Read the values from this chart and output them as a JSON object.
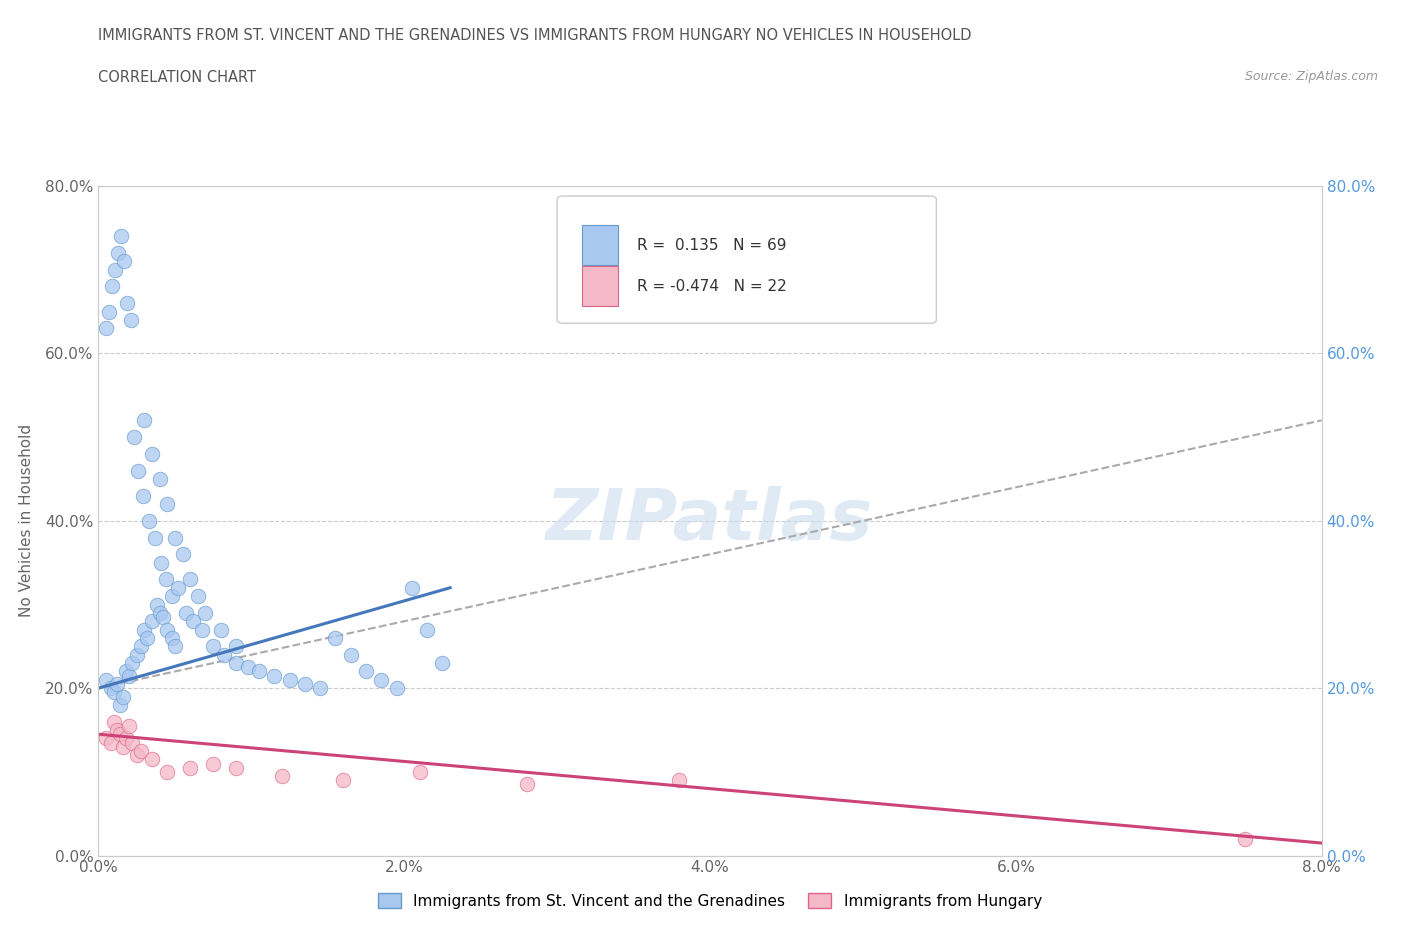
{
  "title_line1": "IMMIGRANTS FROM ST. VINCENT AND THE GRENADINES VS IMMIGRANTS FROM HUNGARY NO VEHICLES IN HOUSEHOLD",
  "title_line2": "CORRELATION CHART",
  "source_text": "Source: ZipAtlas.com",
  "ylabel": "No Vehicles in Household",
  "xlim": [
    0.0,
    8.0
  ],
  "ylim": [
    0.0,
    80.0
  ],
  "xticks": [
    0.0,
    2.0,
    4.0,
    6.0,
    8.0
  ],
  "yticks": [
    0.0,
    20.0,
    40.0,
    60.0,
    80.0
  ],
  "blue_color": "#a8c8f0",
  "pink_color": "#f5b8c8",
  "blue_edge_color": "#6699cc",
  "pink_edge_color": "#dd6688",
  "blue_line_color": "#4477bb",
  "pink_line_color": "#cc4477",
  "dashed_line_color": "#aaaaaa",
  "watermark_color": "#ccddef",
  "blue_scatter_x": [
    0.05,
    0.08,
    0.1,
    0.12,
    0.14,
    0.16,
    0.18,
    0.2,
    0.22,
    0.25,
    0.28,
    0.3,
    0.32,
    0.35,
    0.38,
    0.4,
    0.42,
    0.45,
    0.48,
    0.5,
    0.05,
    0.07,
    0.09,
    0.11,
    0.13,
    0.15,
    0.17,
    0.19,
    0.21,
    0.23,
    0.26,
    0.29,
    0.33,
    0.37,
    0.41,
    0.44,
    0.48,
    0.52,
    0.57,
    0.62,
    0.68,
    0.75,
    0.82,
    0.9,
    0.98,
    1.05,
    1.15,
    1.25,
    1.35,
    1.45,
    1.55,
    1.65,
    1.75,
    1.85,
    1.95,
    2.05,
    2.15,
    2.25,
    0.3,
    0.35,
    0.4,
    0.45,
    0.5,
    0.55,
    0.6,
    0.65,
    0.7,
    0.8,
    0.9
  ],
  "blue_scatter_y": [
    21.0,
    20.0,
    19.5,
    20.5,
    18.0,
    19.0,
    22.0,
    21.5,
    23.0,
    24.0,
    25.0,
    27.0,
    26.0,
    28.0,
    30.0,
    29.0,
    28.5,
    27.0,
    26.0,
    25.0,
    63.0,
    65.0,
    68.0,
    70.0,
    72.0,
    74.0,
    71.0,
    66.0,
    64.0,
    50.0,
    46.0,
    43.0,
    40.0,
    38.0,
    35.0,
    33.0,
    31.0,
    32.0,
    29.0,
    28.0,
    27.0,
    25.0,
    24.0,
    23.0,
    22.5,
    22.0,
    21.5,
    21.0,
    20.5,
    20.0,
    26.0,
    24.0,
    22.0,
    21.0,
    20.0,
    32.0,
    27.0,
    23.0,
    52.0,
    48.0,
    45.0,
    42.0,
    38.0,
    36.0,
    33.0,
    31.0,
    29.0,
    27.0,
    25.0
  ],
  "pink_scatter_x": [
    0.05,
    0.08,
    0.1,
    0.12,
    0.14,
    0.16,
    0.18,
    0.2,
    0.22,
    0.25,
    0.28,
    0.35,
    0.45,
    0.6,
    0.75,
    0.9,
    1.2,
    1.6,
    2.1,
    2.8,
    3.8,
    7.5
  ],
  "pink_scatter_y": [
    14.0,
    13.5,
    16.0,
    15.0,
    14.5,
    13.0,
    14.0,
    15.5,
    13.5,
    12.0,
    12.5,
    11.5,
    10.0,
    10.5,
    11.0,
    10.5,
    9.5,
    9.0,
    10.0,
    8.5,
    9.0,
    2.0
  ],
  "blue_trend_x": [
    0.0,
    2.3
  ],
  "blue_trend_y": [
    20.0,
    32.0
  ],
  "pink_trend_x": [
    0.0,
    8.0
  ],
  "pink_trend_y": [
    14.5,
    1.5
  ],
  "dashed_trend_x": [
    0.0,
    8.0
  ],
  "dashed_trend_y": [
    20.0,
    52.0
  ],
  "legend_text_color": "#333333",
  "legend_blue_r": "R =  0.135",
  "legend_blue_n": "N = 69",
  "legend_pink_r": "R = -0.474",
  "legend_pink_n": "N = 22",
  "bottom_label_blue": "Immigrants from St. Vincent and the Grenadines",
  "bottom_label_pink": "Immigrants from Hungary"
}
